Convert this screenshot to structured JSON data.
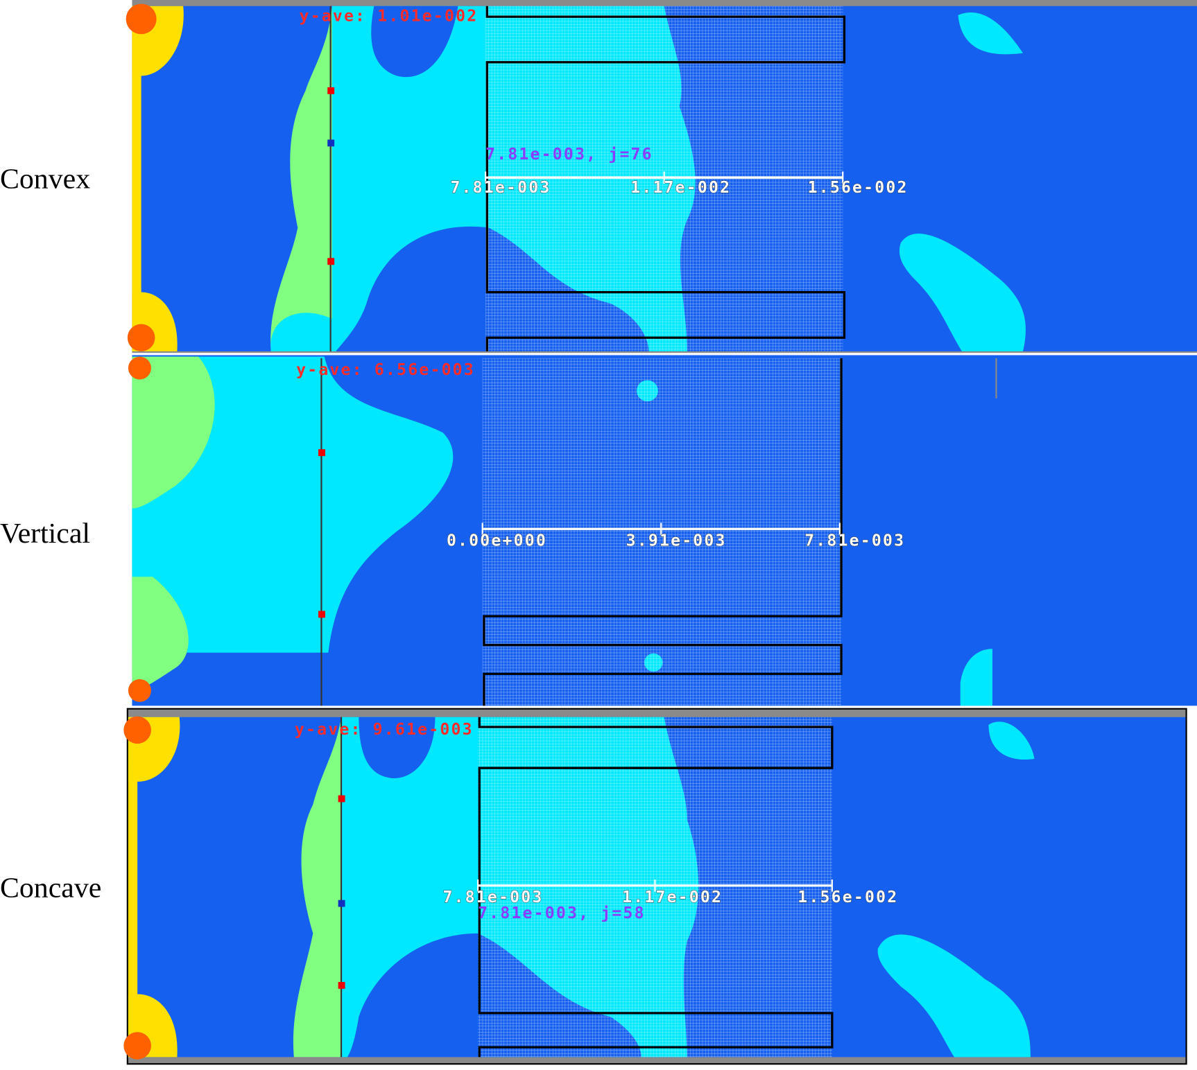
{
  "panels": [
    {
      "label": "Convex",
      "y_ave": "y-ave: 1.01e-002",
      "probe": "7.81e-003, j=76",
      "scale": [
        "7.81e-003",
        "1.17e-002",
        "1.56e-002"
      ]
    },
    {
      "label": "Vertical",
      "y_ave": "y-ave: 6.56e-003",
      "scale": [
        "0.00e+000",
        "3.91e-003",
        "7.81e-003"
      ]
    },
    {
      "label": "Concave",
      "y_ave": "y-ave: 9.61e-003",
      "probe": "7.81e-003, j=58",
      "scale": [
        "7.81e-003",
        "1.17e-002",
        "1.56e-002"
      ]
    }
  ]
}
